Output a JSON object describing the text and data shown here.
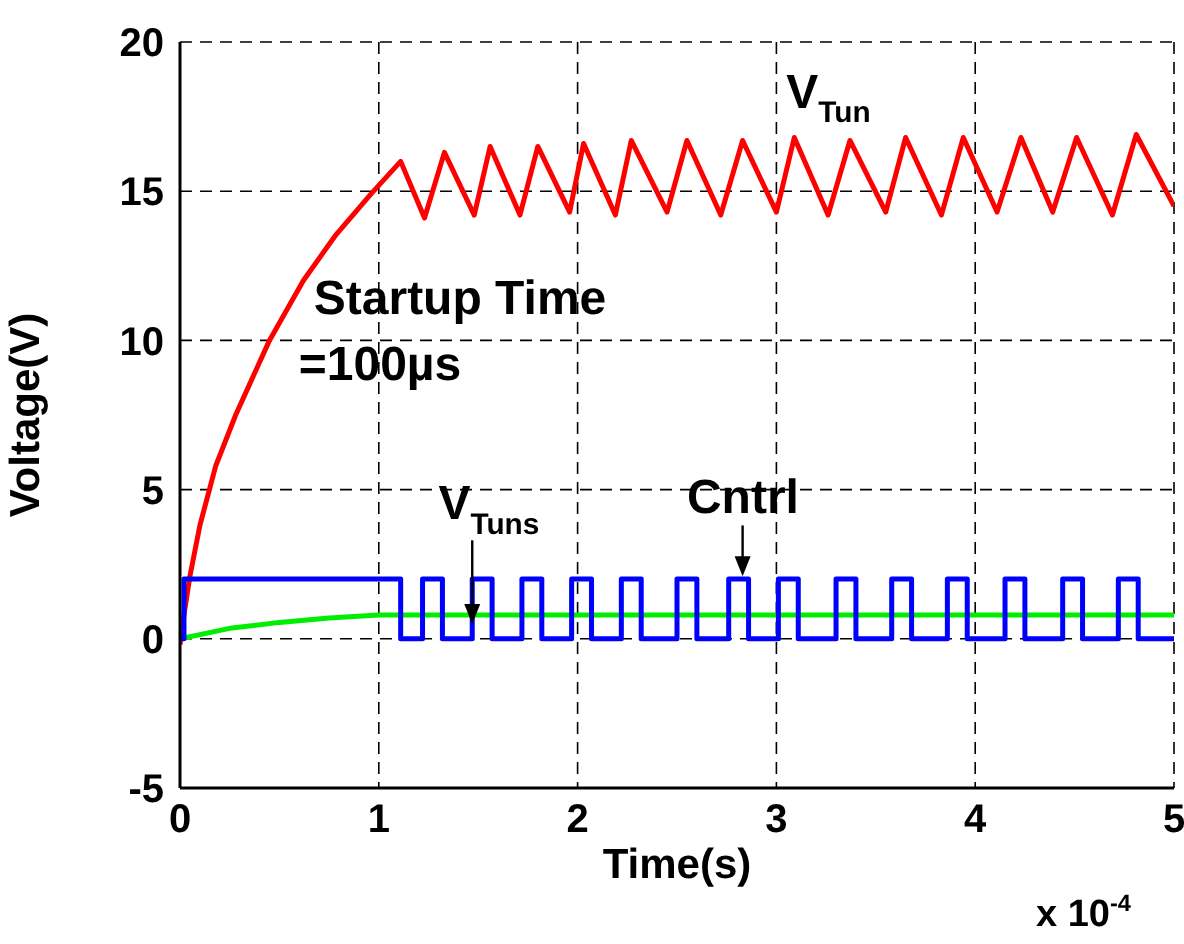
{
  "chart_data": {
    "type": "line",
    "xlabel": "Time(s)",
    "ylabel": "Voltage(V)",
    "xlim": [
      0,
      5
    ],
    "xticks": [
      0,
      1,
      2,
      3,
      4,
      5
    ],
    "ylim": [
      -5,
      20
    ],
    "yticks": [
      -5,
      0,
      5,
      10,
      15,
      20
    ],
    "grid": true,
    "annotations": [
      "Startup Time\n=100µs",
      "x 10$^{-4}$"
    ],
    "series": [
      {
        "name": "V$_{Tun}$",
        "color": "#ff0000",
        "x": [
          0,
          0.02,
          0.05,
          0.1,
          0.18,
          0.28,
          0.45,
          0.62,
          0.78,
          0.96,
          1.11,
          1.23,
          1.33,
          1.48,
          1.56,
          1.71,
          1.8,
          1.96,
          2.03,
          2.19,
          2.27,
          2.45,
          2.55,
          2.72,
          2.83,
          3.0,
          3.09,
          3.26,
          3.37,
          3.55,
          3.65,
          3.83,
          3.94,
          4.11,
          4.23,
          4.39,
          4.51,
          4.69,
          4.81,
          5
        ],
        "values": [
          -0.2,
          0.8,
          2.1,
          3.8,
          5.8,
          7.5,
          10.0,
          12.0,
          13.5,
          14.9,
          16.0,
          14.1,
          16.3,
          14.2,
          16.5,
          14.2,
          16.5,
          14.3,
          16.6,
          14.2,
          16.7,
          14.3,
          16.7,
          14.2,
          16.7,
          14.3,
          16.8,
          14.2,
          16.7,
          14.3,
          16.8,
          14.2,
          16.8,
          14.3,
          16.8,
          14.3,
          16.8,
          14.2,
          16.9,
          14.5
        ]
      },
      {
        "name": "V$_{Tuns}$",
        "color": "#00ee00",
        "x": [
          0,
          0.25,
          0.5,
          0.75,
          1.0,
          5
        ],
        "values": [
          0,
          0.35,
          0.55,
          0.7,
          0.8,
          0.8
        ]
      },
      {
        "name": "Cntrl",
        "color": "#0000ff",
        "x": [
          0,
          0.02,
          0.02,
          1.11,
          1.11,
          1.22,
          1.22,
          1.32,
          1.32,
          1.47,
          1.47,
          1.57,
          1.57,
          1.72,
          1.72,
          1.82,
          1.82,
          1.97,
          1.97,
          2.07,
          2.07,
          2.22,
          2.22,
          2.32,
          2.32,
          2.5,
          2.5,
          2.6,
          2.6,
          2.76,
          2.76,
          2.86,
          2.86,
          3.01,
          3.01,
          3.11,
          3.11,
          3.3,
          3.3,
          3.4,
          3.4,
          3.58,
          3.58,
          3.68,
          3.68,
          3.86,
          3.86,
          3.96,
          3.96,
          4.15,
          4.15,
          4.25,
          4.25,
          4.44,
          4.44,
          4.54,
          4.54,
          4.72,
          4.72,
          4.82,
          4.82,
          5
        ],
        "values": [
          0,
          0,
          2,
          2,
          0,
          0,
          2,
          2,
          0,
          0,
          2,
          2,
          0,
          0,
          2,
          2,
          0,
          0,
          2,
          2,
          0,
          0,
          2,
          2,
          0,
          0,
          2,
          2,
          0,
          0,
          2,
          2,
          0,
          0,
          2,
          2,
          0,
          0,
          2,
          2,
          0,
          0,
          2,
          2,
          0,
          0,
          2,
          2,
          0,
          0,
          2,
          2,
          0,
          0,
          2,
          2,
          0,
          0,
          2,
          2,
          0,
          0
        ]
      }
    ]
  }
}
